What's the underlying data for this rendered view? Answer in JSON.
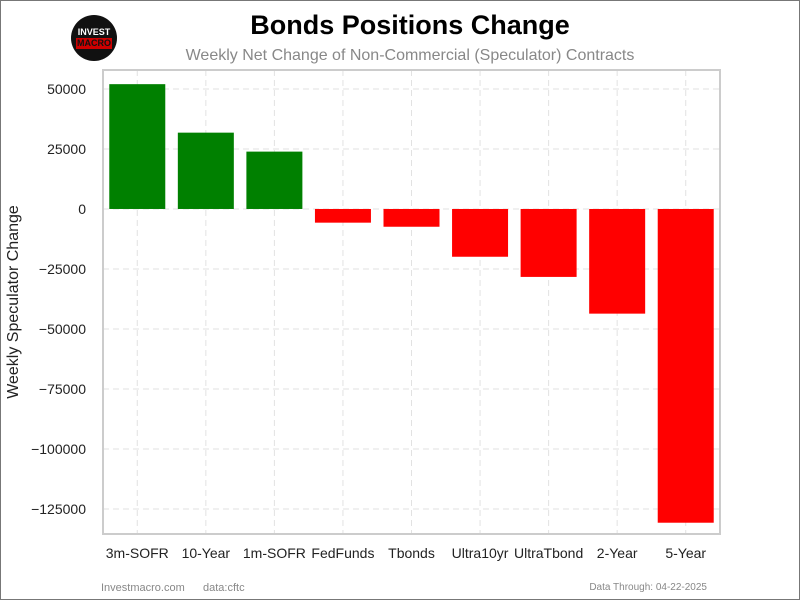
{
  "logo": {
    "line1": "INVEST",
    "line2": "MACRO"
  },
  "footer": {
    "site": "Investmacro.com",
    "source": "data:cftc",
    "date": "Data Through: 04-22-2025"
  },
  "chart_data": {
    "type": "bar",
    "title": "Bonds Positions Change",
    "subtitle": "Weekly Net Change of Non-Commercial (Speculator) Contracts",
    "xlabel": "",
    "ylabel": "Weekly Speculator Change",
    "categories": [
      "3m-SOFR",
      "10-Year",
      "1m-SOFR",
      "FedFunds",
      "Tbonds",
      "Ultra10yr",
      "UltraTbond",
      "2-Year",
      "5-Year"
    ],
    "values": [
      52000,
      31800,
      23900,
      -5700,
      -7400,
      -19900,
      -28300,
      -43600,
      -130700
    ],
    "yticks": [
      50000,
      25000,
      0,
      -25000,
      -50000,
      -75000,
      -100000,
      -125000
    ],
    "ytick_labels": [
      "50000",
      "25000",
      "0",
      "−25000",
      "−50000",
      "−75000",
      "−100000",
      "−125000"
    ],
    "ylim": [
      -135400,
      57900
    ],
    "grid": true,
    "colors": {
      "positive": "#008000",
      "negative": "#ff0000"
    }
  }
}
